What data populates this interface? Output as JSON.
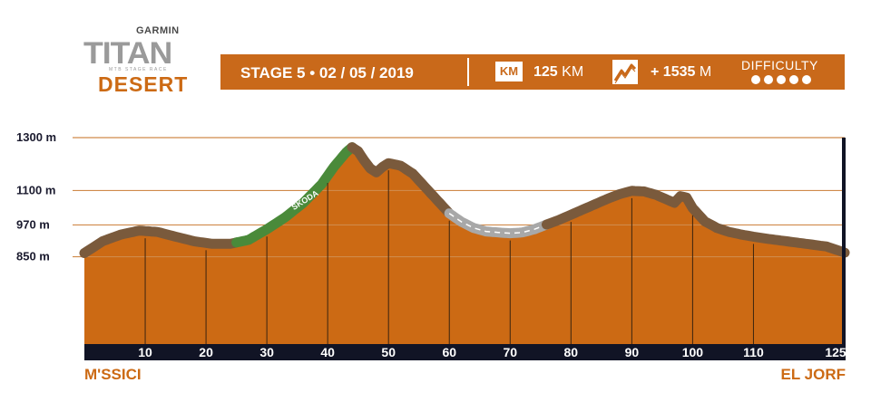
{
  "logo": {
    "brand": "GARMIN",
    "name": "TITAN",
    "subtitle": "MTB STAGE RACE",
    "edition": "DESERT"
  },
  "banner": {
    "stage": "STAGE 5 • 02 / 05 / 2019",
    "km_icon": "KM",
    "distance_value": "125",
    "distance_unit": "KM",
    "climb_icon": "mountain-climb-icon",
    "climb_value": "+ 1535",
    "climb_unit": "M",
    "difficulty_label": "DIFFICULTY",
    "difficulty_level": 5,
    "difficulty_max": 5
  },
  "places": {
    "start": "M'SSICI",
    "end": "EL JORF"
  },
  "colors": {
    "fill": "#cc6a14",
    "ridge": "#7a5a3c",
    "green": "#4a8a3a",
    "paved": "#a8a8a8",
    "axis": "#111425",
    "grid": "#d08a4a"
  },
  "chart_data": {
    "type": "area",
    "title": "STAGE 5 • 02 / 05 / 2019",
    "xlabel": "km",
    "ylabel": "m",
    "xlim": [
      0,
      125
    ],
    "ylim": [
      520,
      1300
    ],
    "y_ticks": [
      850,
      970,
      1100,
      1300
    ],
    "y_tick_labels": [
      "850 m",
      "970 m",
      "1100 m",
      "1300 m"
    ],
    "x_ticks": [
      10,
      20,
      30,
      40,
      50,
      60,
      70,
      80,
      90,
      100,
      110,
      125
    ],
    "x_tick_labels": [
      "10",
      "20",
      "30",
      "40",
      "50",
      "60",
      "70",
      "80",
      "90",
      "100",
      "110",
      "125"
    ],
    "x": [
      0,
      3,
      6,
      9,
      12,
      15,
      18,
      21,
      24,
      27,
      30,
      33,
      36,
      39,
      41,
      43,
      44,
      45,
      46,
      47,
      48,
      49,
      50,
      52,
      54,
      56,
      58,
      60,
      62,
      64,
      66,
      68,
      70,
      72,
      74,
      76,
      78,
      80,
      82,
      84,
      86,
      88,
      90,
      92,
      94,
      96,
      97,
      98,
      99,
      100,
      102,
      104,
      106,
      108,
      110,
      113,
      116,
      119,
      122,
      125
    ],
    "y": [
      850,
      895,
      920,
      935,
      930,
      912,
      895,
      885,
      885,
      900,
      940,
      985,
      1040,
      1110,
      1175,
      1230,
      1250,
      1235,
      1200,
      1170,
      1155,
      1175,
      1190,
      1180,
      1150,
      1100,
      1050,
      1000,
      968,
      945,
      932,
      928,
      925,
      928,
      940,
      958,
      975,
      995,
      1015,
      1035,
      1055,
      1073,
      1085,
      1083,
      1070,
      1050,
      1040,
      1065,
      1060,
      1020,
      970,
      945,
      930,
      920,
      912,
      902,
      893,
      884,
      875,
      852
    ],
    "segments": [
      {
        "name": "gravel",
        "from": 0,
        "to": 25
      },
      {
        "name": "green-sponsor",
        "from": 25,
        "to": 44,
        "label": "SKODA"
      },
      {
        "name": "gravel",
        "from": 44,
        "to": 60
      },
      {
        "name": "paved",
        "from": 60,
        "to": 76
      },
      {
        "name": "gravel",
        "from": 76,
        "to": 125
      }
    ]
  }
}
